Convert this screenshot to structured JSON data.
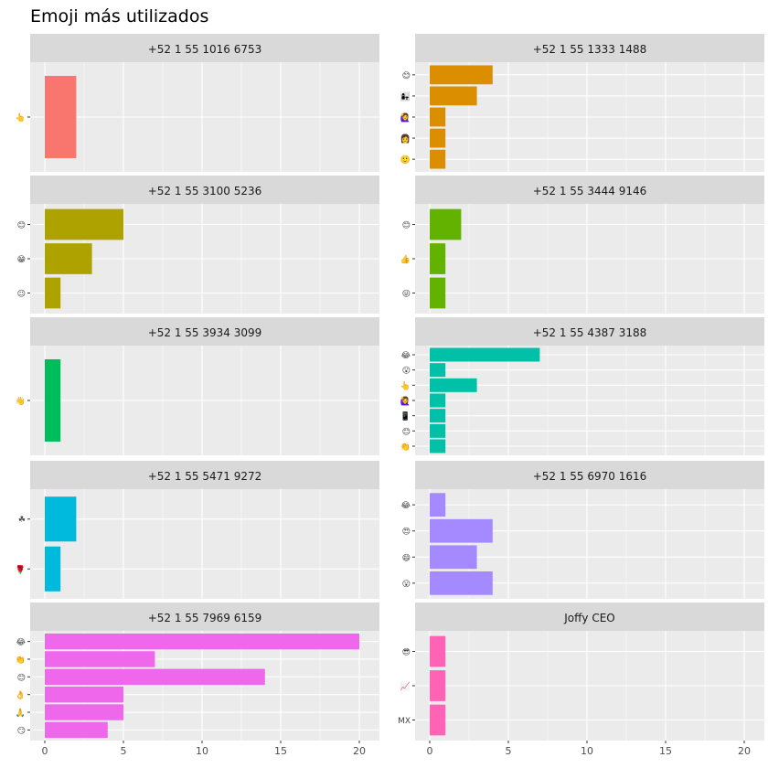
{
  "chart_data": {
    "type": "bar",
    "orientation": "horizontal",
    "title": "Emoji más utilizados",
    "xlabel": "",
    "ylabel": "",
    "xlim": [
      0,
      20
    ],
    "x_ticks": [
      0,
      5,
      10,
      15,
      20
    ],
    "grid": true,
    "legend": "none",
    "panel_background": "#ebebeb",
    "strip_background": "#d9d9d9",
    "grid_color": "#ffffff",
    "facets": [
      {
        "label": "+52 1 55 1016 6753",
        "color": "#F8766D",
        "categories": [
          "👆"
        ],
        "values": [
          2
        ]
      },
      {
        "label": "+52 1 55 1333 1488",
        "color": "#DB8E00",
        "categories": [
          "😊",
          "👩‍👧",
          "🙋‍♀️",
          "👩",
          "🙂"
        ],
        "values": [
          4,
          3,
          1,
          1,
          1
        ]
      },
      {
        "label": "+52 1 55 3100 5236",
        "color": "#AEA200",
        "categories": [
          "😊",
          "😁",
          "😉"
        ],
        "values": [
          5,
          3,
          1
        ]
      },
      {
        "label": "+52 1 55 3444 9146",
        "color": "#64B200",
        "categories": [
          "😊",
          "👍",
          "😜"
        ],
        "values": [
          2,
          1,
          1
        ]
      },
      {
        "label": "+52 1 55 3934 3099",
        "color": "#00BD5C",
        "categories": [
          "👋"
        ],
        "values": [
          1
        ]
      },
      {
        "label": "+52 1 55 4387 3188",
        "color": "#00C1A7",
        "categories": [
          "😂",
          "😮",
          "👆",
          "🙋‍♀️",
          "📱",
          "😊",
          "👏"
        ],
        "values": [
          7,
          1,
          3,
          1,
          1,
          1,
          1
        ]
      },
      {
        "label": "+52 1 55 5471 9272",
        "color": "#00BADE",
        "categories": [
          "☘",
          "🌹"
        ],
        "values": [
          2,
          1
        ]
      },
      {
        "label": "+52 1 55 6970 1616",
        "color": "#A58AFF",
        "categories": [
          "😂",
          "😍",
          "😄",
          "😮"
        ],
        "values": [
          1,
          4,
          3,
          4
        ]
      },
      {
        "label": "+52 1 55 7969 6159",
        "color": "#EF67EB",
        "categories": [
          "😂",
          "👏",
          "😊",
          "👌",
          "🙏",
          "😏"
        ],
        "values": [
          20,
          7,
          14,
          5,
          5,
          4
        ]
      },
      {
        "label": "Joffy CEO",
        "color": "#FF63B6",
        "categories": [
          "😎",
          "📈",
          "MX"
        ],
        "values": [
          1,
          1,
          1
        ]
      }
    ]
  }
}
